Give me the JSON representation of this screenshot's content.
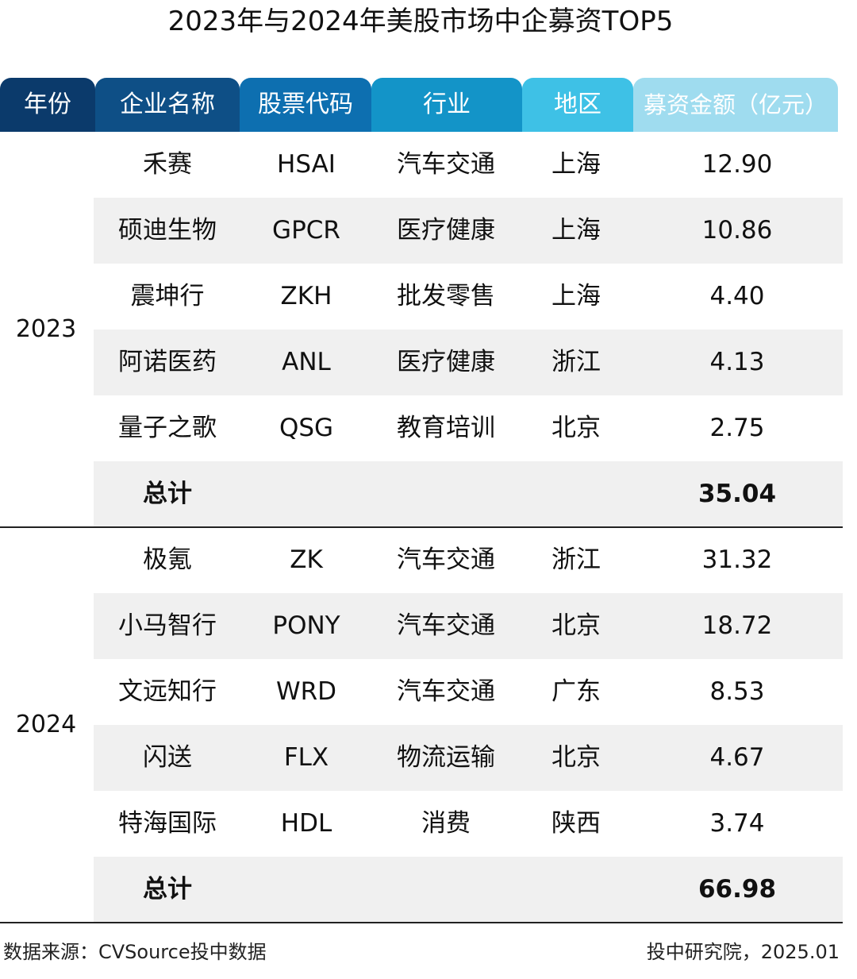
{
  "chart_data": {
    "type": "table",
    "title": "2023年与2024年美股市场中企募资TOP5",
    "columns": [
      "年份",
      "企业名称",
      "股票代码",
      "行业",
      "地区",
      "募资金额（亿元）"
    ],
    "groups": [
      {
        "year": "2023",
        "rows": [
          {
            "name": "禾赛",
            "ticker": "HSAI",
            "industry": "汽车交通",
            "region": "上海",
            "amount": "12.90"
          },
          {
            "name": "硕迪生物",
            "ticker": "GPCR",
            "industry": "医疗健康",
            "region": "上海",
            "amount": "10.86"
          },
          {
            "name": "震坤行",
            "ticker": "ZKH",
            "industry": "批发零售",
            "region": "上海",
            "amount": "4.40"
          },
          {
            "name": "阿诺医药",
            "ticker": "ANL",
            "industry": "医疗健康",
            "region": "浙江",
            "amount": "4.13"
          },
          {
            "name": "量子之歌",
            "ticker": "QSG",
            "industry": "教育培训",
            "region": "北京",
            "amount": "2.75"
          }
        ],
        "total_label": "总计",
        "total": "35.04"
      },
      {
        "year": "2024",
        "rows": [
          {
            "name": "极氪",
            "ticker": "ZK",
            "industry": "汽车交通",
            "region": "浙江",
            "amount": "31.32"
          },
          {
            "name": "小马智行",
            "ticker": "PONY",
            "industry": "汽车交通",
            "region": "北京",
            "amount": "18.72"
          },
          {
            "name": "文远知行",
            "ticker": "WRD",
            "industry": "汽车交通",
            "region": "广东",
            "amount": "8.53"
          },
          {
            "name": "闪送",
            "ticker": "FLX",
            "industry": "物流运输",
            "region": "北京",
            "amount": "4.67"
          },
          {
            "name": "特海国际",
            "ticker": "HDL",
            "industry": "消费",
            "region": "陕西",
            "amount": "3.74"
          }
        ],
        "total_label": "总计",
        "total": "66.98"
      }
    ]
  },
  "header_colors": [
    "#0b3a6b",
    "#0e4f86",
    "#0d6fb0",
    "#1394c8",
    "#3ec1e6",
    "#9fdcef"
  ],
  "row_shade_color": "#f0f0f0",
  "footer": {
    "source": "数据来源：CVSource投中数据",
    "credit": "投中研究院，2025.01"
  }
}
